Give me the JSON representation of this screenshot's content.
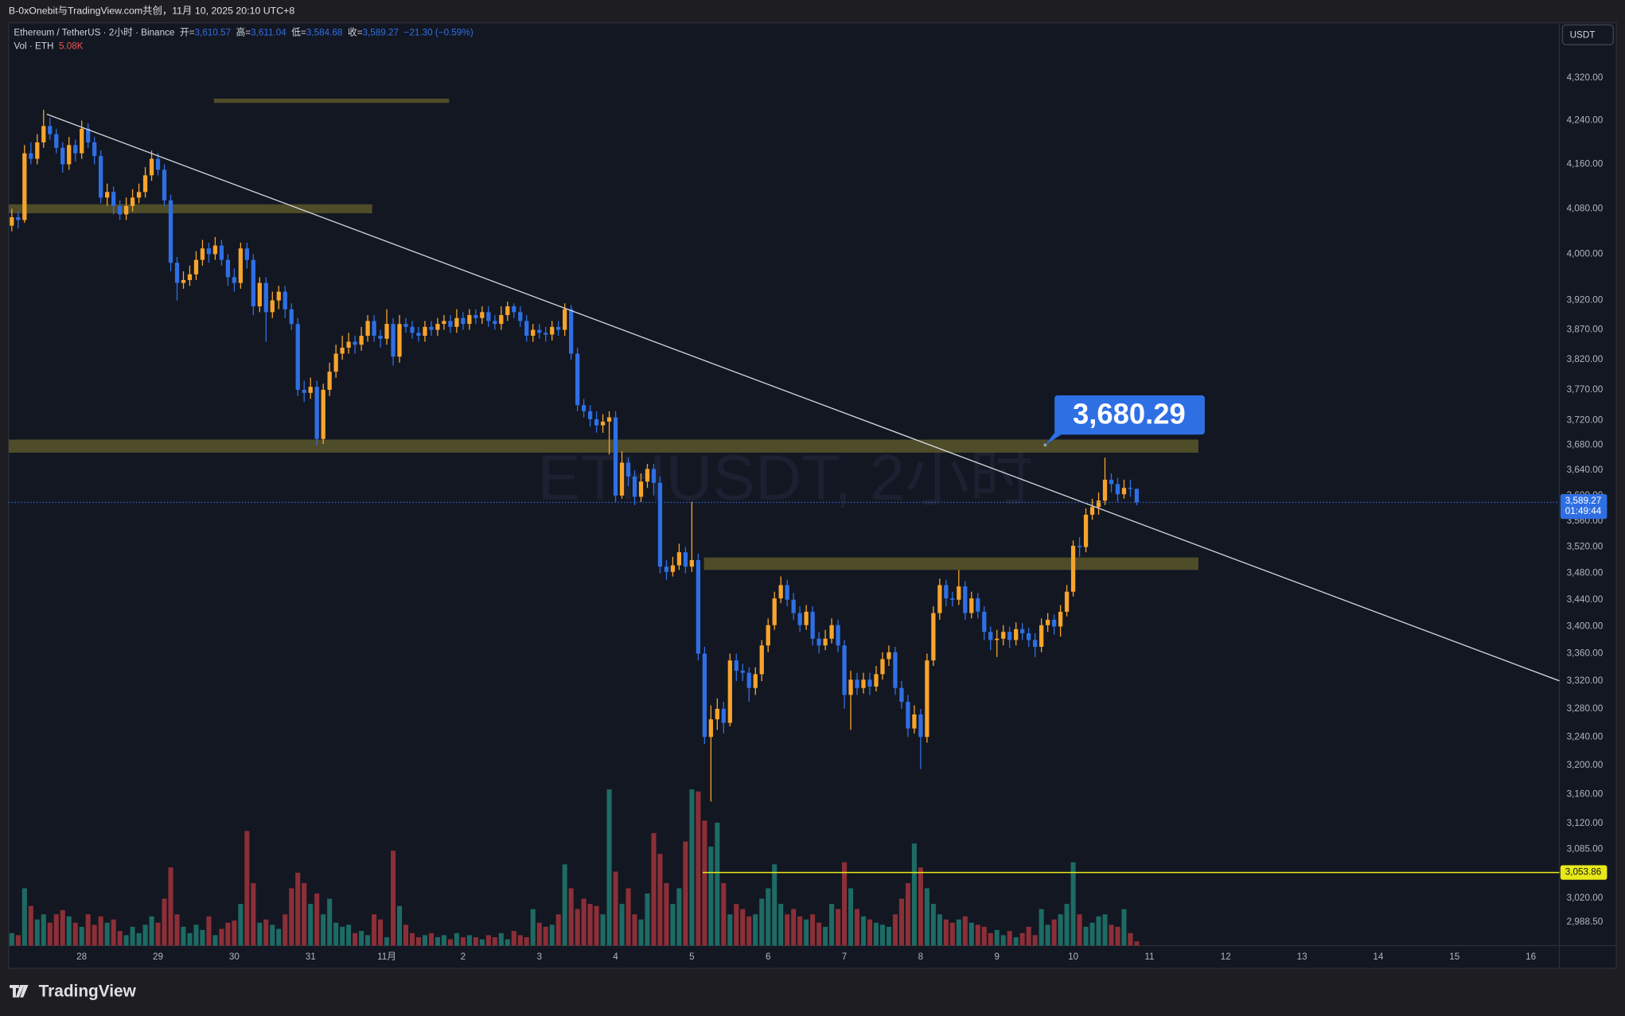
{
  "header": {
    "caption": "B-0xOnebit与TradingView.com共创，11月 10, 2025 20:10 UTC+8"
  },
  "footer": {
    "logo": "TradingView"
  },
  "chart_data": {
    "type": "candlestick",
    "title": "Ethereum / TetherUS · 2小时 · Binance",
    "legend": {
      "open_label": "开=",
      "open": "3,610.57",
      "high_label": "高=",
      "high": "3,611.04",
      "low_label": "低=",
      "low": "3,584.68",
      "close_label": "收=",
      "close": "3,589.27",
      "change": "−21.30 (−0.59%)"
    },
    "volume_title": "Vol · ETH",
    "volume_value_label": "5.08K",
    "watermark": "ETHUSDT, 2小时",
    "currency": "USDT",
    "up_color": "#f7a42c",
    "down_color": "#2f6fe4",
    "volume_up_color": "#1d6b64",
    "volume_down_color": "#8c2f37",
    "zone_color": "#59562a",
    "trendline_color": "#d6d9e0",
    "hline_color": "#e8e81a",
    "log_scale": true,
    "xlim": [
      -0.5,
      243.5
    ],
    "xticks": [
      {
        "value": 11,
        "label": "28"
      },
      {
        "value": 23,
        "label": "29"
      },
      {
        "value": 35,
        "label": "30"
      },
      {
        "value": 47,
        "label": "31"
      },
      {
        "value": 59,
        "label": "11月"
      },
      {
        "value": 71,
        "label": "2"
      },
      {
        "value": 83,
        "label": "3"
      },
      {
        "value": 95,
        "label": "4"
      },
      {
        "value": 107,
        "label": "5"
      },
      {
        "value": 119,
        "label": "6"
      },
      {
        "value": 131,
        "label": "7"
      },
      {
        "value": 143,
        "label": "8"
      },
      {
        "value": 155,
        "label": "9"
      },
      {
        "value": 167,
        "label": "10"
      },
      {
        "value": 179,
        "label": "11"
      },
      {
        "value": 191,
        "label": "12"
      },
      {
        "value": 203,
        "label": "13"
      },
      {
        "value": 215,
        "label": "14"
      },
      {
        "value": 227,
        "label": "15"
      },
      {
        "value": 239,
        "label": "16"
      }
    ],
    "ylim": [
      2958,
      4425
    ],
    "yticks": [
      {
        "value": 4320,
        "label": "4,320.00"
      },
      {
        "value": 4240,
        "label": "4,240.00"
      },
      {
        "value": 4160,
        "label": "4,160.00"
      },
      {
        "value": 4080,
        "label": "4,080.00"
      },
      {
        "value": 4000,
        "label": "4,000.00"
      },
      {
        "value": 3920,
        "label": "3,920.00"
      },
      {
        "value": 3870,
        "label": "3,870.00"
      },
      {
        "value": 3820,
        "label": "3,820.00"
      },
      {
        "value": 3770,
        "label": "3,770.00"
      },
      {
        "value": 3720,
        "label": "3,720.00"
      },
      {
        "value": 3680,
        "label": "3,680.00"
      },
      {
        "value": 3640,
        "label": "3,640.00"
      },
      {
        "value": 3600,
        "label": "3,600.00"
      },
      {
        "value": 3560,
        "label": "3,560.00"
      },
      {
        "value": 3520,
        "label": "3,520.00"
      },
      {
        "value": 3480,
        "label": "3,480.00"
      },
      {
        "value": 3440,
        "label": "3,440.00"
      },
      {
        "value": 3400,
        "label": "3,400.00"
      },
      {
        "value": 3360,
        "label": "3,360.00"
      },
      {
        "value": 3320,
        "label": "3,320.00"
      },
      {
        "value": 3280,
        "label": "3,280.00"
      },
      {
        "value": 3240,
        "label": "3,240.00"
      },
      {
        "value": 3200,
        "label": "3,200.00"
      },
      {
        "value": 3160,
        "label": "3,160.00"
      },
      {
        "value": 3120,
        "label": "3,120.00"
      },
      {
        "value": 3085,
        "label": "3,085.00"
      },
      {
        "value": 3020,
        "label": "3,020.00"
      },
      {
        "value": 2988.5,
        "label": "2,988.50"
      }
    ],
    "volume_lim": [
      0,
      240
    ],
    "open": [
      4050,
      4065,
      4060,
      4180,
      4170,
      4200,
      4230,
      4215,
      4190,
      4160,
      4195,
      4180,
      4225,
      4200,
      4175,
      4100,
      4110,
      4085,
      4070,
      4085,
      4100,
      4110,
      4140,
      4170,
      4150,
      4095,
      3985,
      3950,
      3955,
      3965,
      3990,
      4010,
      4000,
      4015,
      3990,
      3960,
      3950,
      4010,
      3990,
      3910,
      3950,
      3900,
      3920,
      3935,
      3905,
      3880,
      3770,
      3765,
      3775,
      3690,
      3770,
      3800,
      3830,
      3840,
      3850,
      3845,
      3860,
      3885,
      3860,
      3855,
      3880,
      3825,
      3880,
      3875,
      3865,
      3860,
      3875,
      3870,
      3880,
      3885,
      3875,
      3890,
      3880,
      3895,
      3890,
      3900,
      3885,
      3880,
      3895,
      3910,
      3900,
      3885,
      3860,
      3870,
      3865,
      3862,
      3875,
      3870,
      3905,
      3830,
      3745,
      3735,
      3722,
      3712,
      3718,
      3725,
      3600,
      3652,
      3630,
      3598,
      3622,
      3642,
      3620,
      3490,
      3482,
      3492,
      3512,
      3490,
      3500,
      3360,
      3240,
      3265,
      3280,
      3260,
      3350,
      3335,
      3332,
      3310,
      3330,
      3372,
      3402,
      3442,
      3462,
      3440,
      3420,
      3402,
      3422,
      3382,
      3372,
      3382,
      3402,
      3372,
      3300,
      3322,
      3310,
      3322,
      3312,
      3330,
      3352,
      3362,
      3310,
      3290,
      3252,
      3272,
      3240,
      3350,
      3420,
      3462,
      3442,
      3440,
      3460,
      3420,
      3442,
      3422,
      3392,
      3380,
      3382,
      3392,
      3380,
      3396,
      3390,
      3380,
      3370,
      3402,
      3410,
      3400,
      3422,
      3452,
      3522,
      3520,
      3570,
      3582,
      3592,
      3625,
      3618,
      3602,
      3612,
      3610.57
    ],
    "high": [
      4080,
      4075,
      4195,
      4200,
      4215,
      4260,
      4245,
      4225,
      4200,
      4210,
      4205,
      4240,
      4235,
      4210,
      4185,
      4125,
      4120,
      4095,
      4100,
      4115,
      4125,
      4155,
      4185,
      4180,
      4160,
      4105,
      3995,
      3970,
      3980,
      4005,
      4025,
      4020,
      4030,
      4025,
      4000,
      3975,
      4020,
      4020,
      4000,
      3960,
      3960,
      3935,
      3945,
      3945,
      3915,
      3890,
      3785,
      3790,
      3785,
      3780,
      3815,
      3845,
      3860,
      3865,
      3860,
      3875,
      3895,
      3895,
      3870,
      3905,
      3890,
      3895,
      3890,
      3885,
      3875,
      3885,
      3885,
      3890,
      3895,
      3895,
      3905,
      3900,
      3905,
      3905,
      3910,
      3910,
      3895,
      3910,
      3918,
      3915,
      3910,
      3895,
      3880,
      3880,
      3875,
      3885,
      3885,
      3915,
      3912,
      3840,
      3755,
      3745,
      3735,
      3730,
      3735,
      3735,
      3670,
      3660,
      3640,
      3635,
      3650,
      3650,
      3630,
      3500,
      3505,
      3525,
      3520,
      3590,
      3510,
      3370,
      3285,
      3295,
      3290,
      3360,
      3360,
      3345,
      3340,
      3340,
      3380,
      3412,
      3452,
      3475,
      3470,
      3450,
      3430,
      3432,
      3430,
      3392,
      3395,
      3412,
      3410,
      3380,
      3335,
      3332,
      3332,
      3332,
      3342,
      3362,
      3372,
      3370,
      3320,
      3300,
      3285,
      3280,
      3360,
      3430,
      3472,
      3470,
      3452,
      3485,
      3468,
      3452,
      3450,
      3430,
      3400,
      3395,
      3402,
      3400,
      3406,
      3405,
      3398,
      3390,
      3412,
      3420,
      3418,
      3432,
      3462,
      3530,
      3535,
      3580,
      3595,
      3605,
      3660,
      3635,
      3628,
      3625,
      3625,
      3611.04
    ],
    "low": [
      4040,
      4045,
      4055,
      4160,
      4160,
      4190,
      4205,
      4180,
      4145,
      4150,
      4165,
      4170,
      4190,
      4160,
      4090,
      4085,
      4070,
      4060,
      4060,
      4075,
      4090,
      4100,
      4130,
      4140,
      4085,
      3970,
      3920,
      3940,
      3945,
      3955,
      3980,
      3985,
      3990,
      3980,
      3945,
      3935,
      3940,
      3975,
      3895,
      3900,
      3850,
      3890,
      3905,
      3890,
      3870,
      3760,
      3750,
      3755,
      3680,
      3682,
      3760,
      3790,
      3820,
      3830,
      3830,
      3835,
      3850,
      3850,
      3840,
      3845,
      3810,
      3815,
      3865,
      3855,
      3850,
      3850,
      3860,
      3860,
      3870,
      3865,
      3865,
      3870,
      3870,
      3880,
      3880,
      3875,
      3870,
      3870,
      3885,
      3890,
      3875,
      3850,
      3850,
      3855,
      3850,
      3852,
      3860,
      3860,
      3820,
      3735,
      3725,
      3710,
      3700,
      3700,
      3665,
      3590,
      3595,
      3615,
      3585,
      3590,
      3612,
      3600,
      3480,
      3470,
      3475,
      3485,
      3480,
      3482,
      3350,
      3230,
      3150,
      3250,
      3245,
      3255,
      3320,
      3320,
      3290,
      3300,
      3320,
      3362,
      3395,
      3435,
      3430,
      3410,
      3392,
      3395,
      3372,
      3360,
      3365,
      3375,
      3362,
      3280,
      3250,
      3300,
      3302,
      3300,
      3305,
      3322,
      3342,
      3300,
      3280,
      3240,
      3245,
      3195,
      3232,
      3342,
      3410,
      3430,
      3430,
      3432,
      3410,
      3412,
      3412,
      3380,
      3365,
      3355,
      3372,
      3368,
      3372,
      3380,
      3370,
      3355,
      3362,
      3392,
      3388,
      3385,
      3415,
      3445,
      3505,
      3512,
      3562,
      3570,
      3585,
      3605,
      3590,
      3595,
      3598,
      3584.68
    ],
    "close": [
      4065,
      4060,
      4180,
      4170,
      4200,
      4230,
      4215,
      4190,
      4160,
      4195,
      4180,
      4225,
      4200,
      4175,
      4100,
      4110,
      4085,
      4070,
      4085,
      4100,
      4110,
      4140,
      4170,
      4150,
      4095,
      3985,
      3950,
      3955,
      3965,
      3990,
      4010,
      4000,
      4015,
      3990,
      3960,
      3950,
      4010,
      3990,
      3910,
      3950,
      3900,
      3920,
      3935,
      3905,
      3880,
      3770,
      3765,
      3775,
      3690,
      3770,
      3800,
      3830,
      3840,
      3850,
      3845,
      3860,
      3885,
      3860,
      3855,
      3880,
      3825,
      3880,
      3875,
      3865,
      3860,
      3875,
      3870,
      3880,
      3885,
      3875,
      3890,
      3880,
      3895,
      3890,
      3900,
      3885,
      3880,
      3895,
      3910,
      3900,
      3885,
      3860,
      3870,
      3865,
      3862,
      3875,
      3870,
      3905,
      3830,
      3745,
      3735,
      3722,
      3712,
      3718,
      3725,
      3600,
      3652,
      3630,
      3598,
      3622,
      3642,
      3620,
      3490,
      3482,
      3492,
      3512,
      3490,
      3500,
      3360,
      3240,
      3265,
      3280,
      3260,
      3350,
      3335,
      3332,
      3310,
      3330,
      3372,
      3402,
      3442,
      3462,
      3440,
      3420,
      3402,
      3422,
      3382,
      3372,
      3382,
      3402,
      3372,
      3300,
      3322,
      3310,
      3322,
      3312,
      3330,
      3352,
      3362,
      3310,
      3290,
      3252,
      3272,
      3240,
      3350,
      3420,
      3462,
      3442,
      3440,
      3460,
      3420,
      3442,
      3422,
      3392,
      3380,
      3382,
      3392,
      3380,
      3396,
      3390,
      3380,
      3370,
      3402,
      3410,
      3400,
      3422,
      3452,
      3522,
      3520,
      3570,
      3582,
      3592,
      3625,
      3618,
      3602,
      3612,
      3610.57,
      3589.27
    ],
    "volume": [
      15.2,
      12.7,
      69.9,
      48.3,
      31.8,
      38.1,
      27.9,
      38.1,
      43.2,
      35.6,
      27.9,
      22.9,
      38.1,
      25.4,
      35.6,
      27.9,
      31.8,
      17.8,
      12.7,
      22.9,
      15.2,
      25.4,
      35.6,
      27.9,
      57.2,
      95.3,
      38.1,
      22.9,
      15.2,
      25.4,
      19.1,
      35.6,
      12.7,
      20.3,
      27.9,
      30.5,
      50.8,
      139.7,
      76.2,
      27.9,
      31.8,
      25.4,
      20.3,
      38.1,
      69.9,
      88.9,
      76.2,
      50.8,
      63.5,
      38.1,
      57.2,
      27.9,
      22.9,
      25.4,
      15.2,
      17.8,
      12.7,
      38.1,
      31.8,
      10.2,
      115.6,
      48.3,
      25.4,
      15.2,
      10.2,
      12.7,
      15.2,
      10.2,
      12.7,
      7.6,
      15.2,
      10.2,
      12.7,
      10.2,
      7.6,
      12.7,
      10.2,
      15.2,
      7.6,
      17.8,
      12.7,
      10.2,
      44.5,
      27.9,
      22.9,
      25.4,
      38.1,
      99.1,
      69.9,
      44.5,
      57.2,
      50.8,
      48.3,
      38.1,
      190.5,
      90.2,
      50.8,
      69.9,
      38.1,
      31.8,
      63.5,
      137.2,
      111.8,
      76.2,
      50.8,
      69.9,
      127,
      190.5,
      188,
      152.4,
      120.7,
      149.9,
      76.2,
      38.1,
      50.8,
      44.5,
      35.6,
      38.1,
      57.2,
      69.9,
      99.1,
      50.8,
      38.1,
      44.5,
      35.6,
      31.8,
      38.1,
      27.9,
      22.9,
      50.8,
      44.5,
      101.6,
      69.9,
      44.5,
      35.6,
      31.8,
      27.9,
      25.4,
      22.9,
      38.1,
      57.2,
      76.2,
      124.5,
      95.3,
      69.9,
      50.8,
      38.1,
      31.8,
      27.9,
      31.8,
      35.6,
      27.9,
      25.4,
      22.9,
      15.2,
      19.1,
      12.7,
      17.8,
      10.2,
      15.2,
      22.9,
      12.7,
      44.5,
      25.4,
      31.8,
      38.1,
      50.8,
      101.6,
      38.1,
      22.9,
      27.9,
      35.6,
      38.1,
      25.4,
      22.9,
      44.5,
      15.2,
      5.08
    ],
    "last_price": {
      "value": 3589.27,
      "label": "3,589.27",
      "countdown": "01:49:44"
    },
    "trendline": {
      "x": [
        5.5,
        243.6
      ],
      "y": [
        4252,
        3320
      ]
    },
    "zones": [
      {
        "x": [
          31.8,
          68.8
        ],
        "y": [
          4273,
          4281
        ]
      },
      {
        "x": [
          -0.5,
          56.7
        ],
        "y": [
          4072,
          4088
        ]
      },
      {
        "x": [
          -0.5,
          186.7
        ],
        "y": [
          3668,
          3689
        ]
      },
      {
        "x": [
          108.9,
          186.7
        ],
        "y": [
          3485,
          3504
        ]
      }
    ],
    "hline": {
      "x": 108.7,
      "value": 3053.86,
      "label": "3,053.86"
    },
    "callout": {
      "x": 162.6,
      "value": 3680.29,
      "label": "3,680.29"
    }
  }
}
